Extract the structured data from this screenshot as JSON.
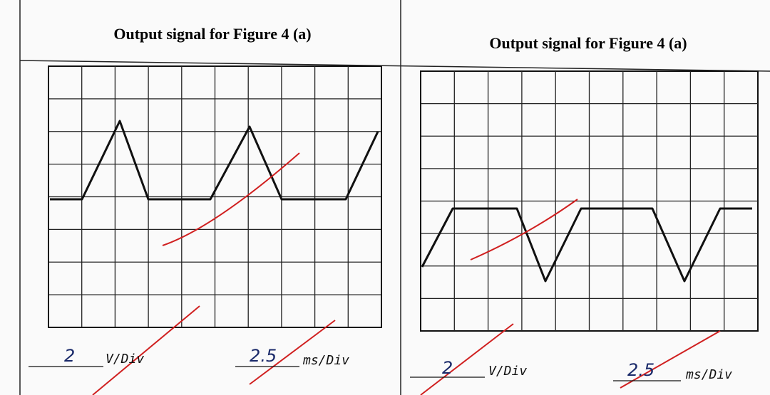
{
  "panels": [
    {
      "title": "Output signal for Figure 4 (a)",
      "volts_per_div": "2",
      "volt_unit": "V/Div",
      "time_per_div": "2.5",
      "time_unit": "ms/Div"
    },
    {
      "title": "Output signal for Figure 4 (a)",
      "volts_per_div": "2",
      "volt_unit": "V/Div",
      "time_per_div": "2.5",
      "time_unit": "ms/Div"
    }
  ]
}
